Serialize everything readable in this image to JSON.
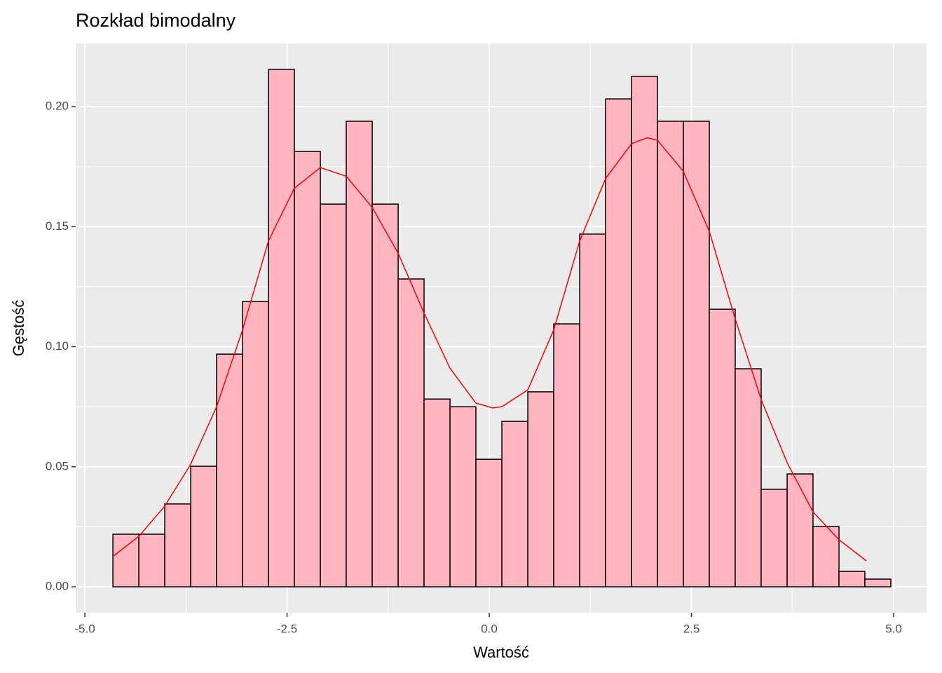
{
  "chart_data": {
    "type": "histogram",
    "title": "Rozkład bimodalny",
    "x_label": "Wartość",
    "y_label": "Gęstość",
    "bins": [
      -4.653,
      -4.332,
      -4.012,
      -3.691,
      -3.371,
      -3.05,
      -2.729,
      -2.409,
      -2.088,
      -1.768,
      -1.447,
      -1.126,
      -0.806,
      -0.485,
      -0.165,
      0.156,
      0.477,
      0.797,
      1.118,
      1.438,
      1.759,
      2.08,
      2.4,
      2.721,
      3.041,
      3.362,
      3.683,
      4.003,
      4.324,
      4.644,
      4.965
    ],
    "values": [
      0.0219,
      0.0219,
      0.0345,
      0.0502,
      0.0969,
      0.1188,
      0.2155,
      0.1813,
      0.1594,
      0.1939,
      0.1594,
      0.1282,
      0.0782,
      0.075,
      0.0531,
      0.0689,
      0.0812,
      0.1095,
      0.1469,
      0.2032,
      0.2126,
      0.1939,
      0.1939,
      0.1156,
      0.0908,
      0.0406,
      0.047,
      0.0251,
      0.0064,
      0.0032
    ],
    "color": "#ffb6c1",
    "edge_color": "#000000",
    "density": {
      "color": "#ff0000",
      "x": [
        -4.653,
        -4.333,
        -4.012,
        -3.692,
        -3.371,
        -3.05,
        -2.73,
        -2.409,
        -2.088,
        -1.768,
        -1.447,
        -1.127,
        -0.806,
        -0.485,
        -0.165,
        0.043,
        0.156,
        0.477,
        0.797,
        1.118,
        1.438,
        1.759,
        1.95,
        2.08,
        2.4,
        2.721,
        3.042,
        3.362,
        3.683,
        4.003,
        4.324,
        4.662
      ],
      "values": [
        0.0126,
        0.021,
        0.0336,
        0.051,
        0.075,
        0.107,
        0.144,
        0.166,
        0.1746,
        0.171,
        0.158,
        0.139,
        0.114,
        0.091,
        0.0765,
        0.0745,
        0.075,
        0.082,
        0.107,
        0.144,
        0.17,
        0.1845,
        0.187,
        0.186,
        0.173,
        0.148,
        0.1115,
        0.078,
        0.0517,
        0.0312,
        0.0196,
        0.0108
      ]
    },
    "xlim": [
      -5.113,
      5.407
    ],
    "ylim": [
      -0.0108,
      0.2263
    ],
    "xticks": [
      {
        "value": -5,
        "label": "-5.0"
      },
      -2.5,
      {
        "value": 0,
        "label": "0.0"
      },
      2.5,
      {
        "value": 5,
        "label": "5.0"
      }
    ],
    "yticks": [
      {
        "value": 0,
        "label": "0.00"
      },
      {
        "value": 0.05,
        "label": "0.05"
      },
      {
        "value": 0.1,
        "label": "0.10"
      },
      {
        "value": 0.15,
        "label": "0.15"
      },
      {
        "value": 0.2,
        "label": "0.20"
      }
    ],
    "grid": true
  }
}
